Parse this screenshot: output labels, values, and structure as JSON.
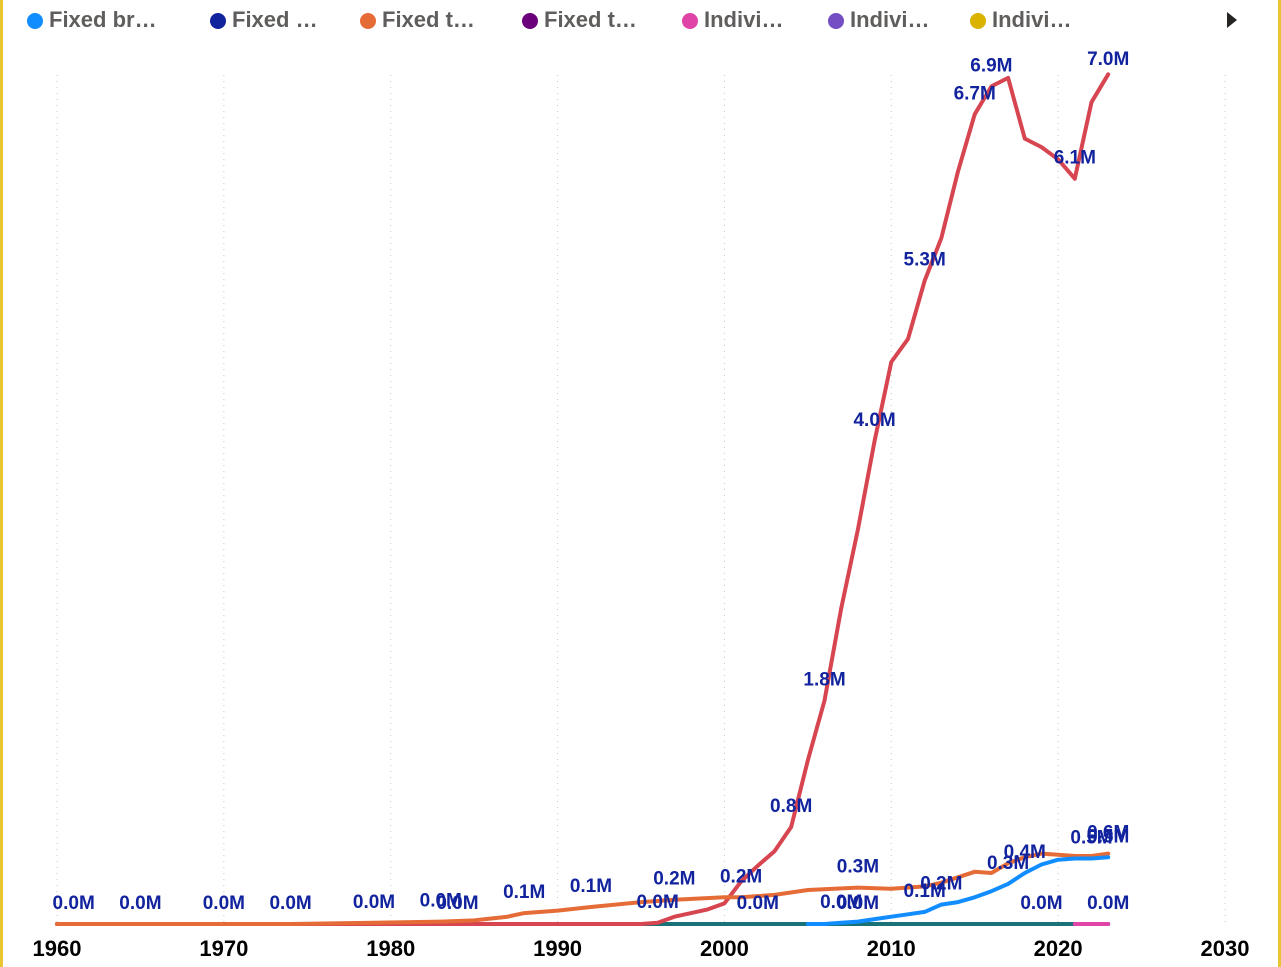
{
  "chart_data": {
    "type": "line",
    "xlim": [
      1960,
      2030
    ],
    "xticks": [
      1960,
      1970,
      1980,
      1990,
      2000,
      2010,
      2020,
      2030
    ],
    "ylim": [
      0,
      7.2
    ],
    "grid": true,
    "legend": "top",
    "series": [
      {
        "name": "Fixed br…",
        "color": "#118DFF",
        "x": [
          2005,
          2006,
          2007,
          2008,
          2009,
          2010,
          2011,
          2012,
          2013,
          2014,
          2015,
          2016,
          2017,
          2018,
          2019,
          2020,
          2021,
          2022,
          2023
        ],
        "values": [
          0,
          0,
          0.01,
          0.02,
          0.04,
          0.06,
          0.08,
          0.1,
          0.16,
          0.18,
          0.22,
          0.27,
          0.33,
          0.42,
          0.49,
          0.53,
          0.54,
          0.54,
          0.55
        ],
        "value_labels": [
          null,
          null,
          "0.0M",
          null,
          null,
          null,
          null,
          "0.1M",
          "0.2M",
          null,
          null,
          null,
          "0.3M",
          "0.4M",
          null,
          null,
          null,
          "0.5M",
          "0.5M"
        ]
      },
      {
        "name": "Fixed …",
        "color": "#12239E"
      },
      {
        "name": "Fixed t…",
        "color": "#E66C37",
        "x": [
          1960,
          1961,
          1965,
          1970,
          1974,
          1979,
          1983,
          1985,
          1987,
          1988,
          1990,
          1992,
          1995,
          1997,
          2000,
          2001,
          2003,
          2005,
          2008,
          2010,
          2012,
          2013,
          2015,
          2016,
          2017,
          2018,
          2019,
          2020,
          2021,
          2022,
          2023
        ],
        "values": [
          0,
          0,
          0,
          0,
          0,
          0.01,
          0.02,
          0.03,
          0.06,
          0.09,
          0.11,
          0.14,
          0.18,
          0.2,
          0.22,
          0.22,
          0.24,
          0.28,
          0.3,
          0.29,
          0.31,
          0.34,
          0.43,
          0.42,
          0.5,
          0.55,
          0.58,
          0.57,
          0.56,
          0.56,
          0.58
        ],
        "value_labels": [
          null,
          "0.0M",
          "0.0M",
          "0.0M",
          "0.0M",
          "0.0M",
          "0.0M",
          null,
          null,
          "0.1M",
          null,
          "0.1M",
          null,
          "0.2M",
          null,
          "0.2M",
          null,
          null,
          "0.3M",
          null,
          null,
          null,
          null,
          null,
          null,
          null,
          null,
          null,
          null,
          null,
          "0.6M"
        ]
      },
      {
        "name": "Fixed t…",
        "color": "#6B007B"
      },
      {
        "name": "Indivi…",
        "color": "#E044A7",
        "x": [
          2021,
          2022,
          2023
        ],
        "values": [
          0,
          0,
          0
        ],
        "value_labels": [
          null,
          null,
          "0.0M"
        ]
      },
      {
        "name": "Indivi…",
        "color": "#744EC2"
      },
      {
        "name": "Indivi…",
        "color": "#D9B300"
      },
      {
        "color": "#D64550",
        "x": [
          1960,
          1995,
          1996,
          1997,
          1998,
          1999,
          2000,
          2001,
          2002,
          2003,
          2004,
          2005,
          2006,
          2007,
          2008,
          2009,
          2010,
          2011,
          2012,
          2013,
          2014,
          2015,
          2016,
          2017,
          2018,
          2019,
          2020,
          2021,
          2022,
          2023
        ],
        "values": [
          0,
          0,
          0.01,
          0.06,
          0.09,
          0.12,
          0.17,
          0.35,
          0.48,
          0.6,
          0.8,
          1.35,
          1.84,
          2.6,
          3.25,
          3.98,
          4.63,
          4.82,
          5.3,
          5.65,
          6.2,
          6.67,
          6.9,
          6.97,
          6.47,
          6.4,
          6.3,
          6.14,
          6.77,
          7.0
        ],
        "value_labels": [
          null,
          null,
          "0.0M",
          null,
          null,
          null,
          null,
          null,
          null,
          null,
          "0.8M",
          null,
          "1.8M",
          null,
          null,
          "4.0M",
          null,
          null,
          "5.3M",
          null,
          null,
          "6.7M",
          "6.9M",
          null,
          null,
          null,
          null,
          "6.1M",
          null,
          "7.0M"
        ]
      },
      {
        "color": "#197278",
        "x": [
          1960,
          1984,
          2002,
          2008,
          2019,
          2023
        ],
        "values": [
          0,
          0,
          0,
          0,
          0,
          0
        ],
        "value_labels": [
          null,
          "0.0M",
          "0.0M",
          "0.0M",
          "0.0M",
          null
        ]
      }
    ]
  }
}
